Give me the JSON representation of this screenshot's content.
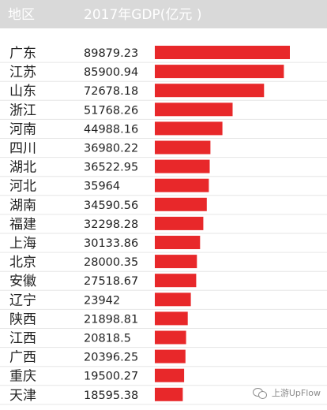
{
  "chart_data": {
    "type": "bar",
    "orientation": "horizontal",
    "header": {
      "region_label": "地区",
      "value_label": "2017年GDP(亿元 )"
    },
    "categories": [
      "广东",
      "江苏",
      "山东",
      "浙江",
      "河南",
      "四川",
      "湖北",
      "河北",
      "湖南",
      "福建",
      "上海",
      "北京",
      "安徽",
      "辽宁",
      "陕西",
      "江西",
      "广西",
      "重庆",
      "天津"
    ],
    "value_labels": [
      "89879.23",
      "85900.94",
      "72678.18",
      "51768.26",
      "44988.16",
      "36980.22",
      "36522.95",
      "35964",
      "34590.56",
      "32298.28",
      "30133.86",
      "28000.35",
      "27518.67",
      "23942",
      "21898.81",
      "20818.5",
      "20396.25",
      "19500.27",
      "18595.38"
    ],
    "values": [
      89879.23,
      85900.94,
      72678.18,
      51768.26,
      44988.16,
      36980.22,
      36522.95,
      35964,
      34590.56,
      32298.28,
      30133.86,
      28000.35,
      27518.67,
      23942,
      21898.81,
      20818.5,
      20396.25,
      19500.27,
      18595.38
    ],
    "bar_color": "#e8282a",
    "header_background": "#d9d9d9",
    "row_separator_color": "#e6e6e6",
    "xlim": [
      0,
      89879.23
    ]
  },
  "watermark": {
    "icon": "wechat-icon",
    "text": "上游UpFlow"
  }
}
